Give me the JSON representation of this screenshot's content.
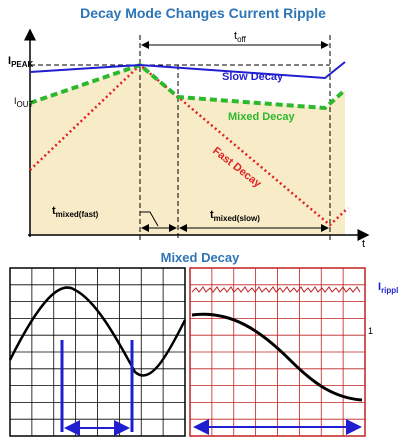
{
  "title": "Decay Mode Changes Current Ripple",
  "labels": {
    "ipeak": {
      "main": "I",
      "sub": "PEAK"
    },
    "iout": {
      "main": "I",
      "sub": "OUT"
    },
    "toff": {
      "main": "t",
      "sub": "off"
    },
    "slow": "Slow Decay",
    "mixed": "Mixed Decay",
    "fast": "Fast Decay",
    "tmixed_fast": {
      "main": "t",
      "sub": "mixed(fast)"
    },
    "tmixed_slow": {
      "main": "t",
      "sub": "mixed(slow)"
    },
    "t_axis": "t"
  },
  "scope": {
    "title": "Mixed Decay",
    "iripple": {
      "main": "I",
      "sub": "rippl"
    },
    "channel": "1"
  }
}
